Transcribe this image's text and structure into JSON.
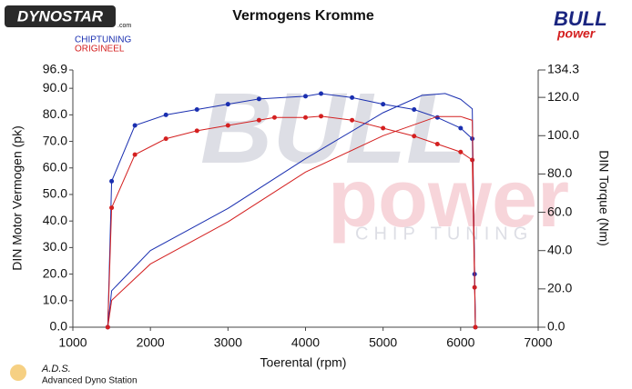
{
  "chart_data": {
    "type": "line",
    "title": "Vermogens Kromme",
    "xlabel": "Toerental (rpm)",
    "ylabel": "DIN Motor Vermogen (pk)",
    "y2label": "DIN Torque (Nm)",
    "xlim": [
      1000,
      7000
    ],
    "xticks": [
      1000,
      2000,
      3000,
      4000,
      5000,
      6000,
      7000
    ],
    "ylim": [
      0,
      96.9
    ],
    "yticks": [
      {
        "value": 0,
        "label": "0.0"
      },
      {
        "value": 10,
        "label": "10.0"
      },
      {
        "value": 20,
        "label": "20.0"
      },
      {
        "value": 30,
        "label": "30.0"
      },
      {
        "value": 40,
        "label": "40.0"
      },
      {
        "value": 50,
        "label": "50.0"
      },
      {
        "value": 60,
        "label": "60.0"
      },
      {
        "value": 70,
        "label": "70.0"
      },
      {
        "value": 80,
        "label": "80.0"
      },
      {
        "value": 90,
        "label": "90.0"
      },
      {
        "value": 96.9,
        "label": "96.9"
      }
    ],
    "y2lim": [
      0,
      134.3
    ],
    "y2ticks": [
      {
        "value": 0,
        "label": "0.0"
      },
      {
        "value": 20,
        "label": "20.0"
      },
      {
        "value": 40,
        "label": "40.0"
      },
      {
        "value": 60,
        "label": "60.0"
      },
      {
        "value": 80,
        "label": "80.0"
      },
      {
        "value": 100,
        "label": "100.0"
      },
      {
        "value": 120,
        "label": "120.0"
      },
      {
        "value": 134.3,
        "label": "134.3"
      }
    ],
    "series": [
      {
        "name": "CHIPTUNING",
        "color": "#1a2fb0",
        "markers": true,
        "x": [
          1450,
          1500,
          1800,
          2200,
          2600,
          3000,
          3400,
          4000,
          4200,
          4600,
          5000,
          5400,
          5700,
          6000,
          6150,
          6180,
          6190
        ],
        "values": [
          0,
          55,
          76,
          80,
          82,
          84,
          86,
          87,
          88,
          86.5,
          84,
          82,
          79,
          75,
          71,
          20,
          0
        ]
      },
      {
        "name": "ORIGINEEL",
        "color": "#d42020",
        "markers": true,
        "x": [
          1450,
          1500,
          1800,
          2200,
          2600,
          3000,
          3400,
          3600,
          4000,
          4200,
          4600,
          5000,
          5400,
          5700,
          6000,
          6150,
          6180,
          6190
        ],
        "values": [
          0,
          45,
          65,
          71,
          74,
          76,
          78,
          79,
          79,
          79.5,
          78,
          75,
          72,
          69,
          66,
          63,
          15,
          0
        ]
      },
      {
        "color": "#1a2fb0",
        "axis": "y2",
        "x": [
          1450,
          1500,
          2000,
          3000,
          4000,
          5000,
          5500,
          5800,
          6000,
          6150,
          6190
        ],
        "values": [
          0,
          19,
          40,
          62,
          88,
          112,
          121,
          122,
          119,
          114,
          0
        ]
      },
      {
        "color": "#d42020",
        "axis": "y2",
        "x": [
          1450,
          1500,
          2000,
          3000,
          4000,
          5000,
          5700,
          6000,
          6150,
          6190
        ],
        "values": [
          0,
          14,
          33,
          55,
          81,
          100,
          110,
          110,
          108,
          0
        ]
      }
    ],
    "logos": {
      "dynostar": "DYNOSTAR",
      "dynostar_suffix": ".com",
      "bull": "BULL",
      "power": "power",
      "chip": "CHIP TUNING",
      "ads": "A.D.S.",
      "ads_full": "Advanced Dyno Station"
    }
  }
}
